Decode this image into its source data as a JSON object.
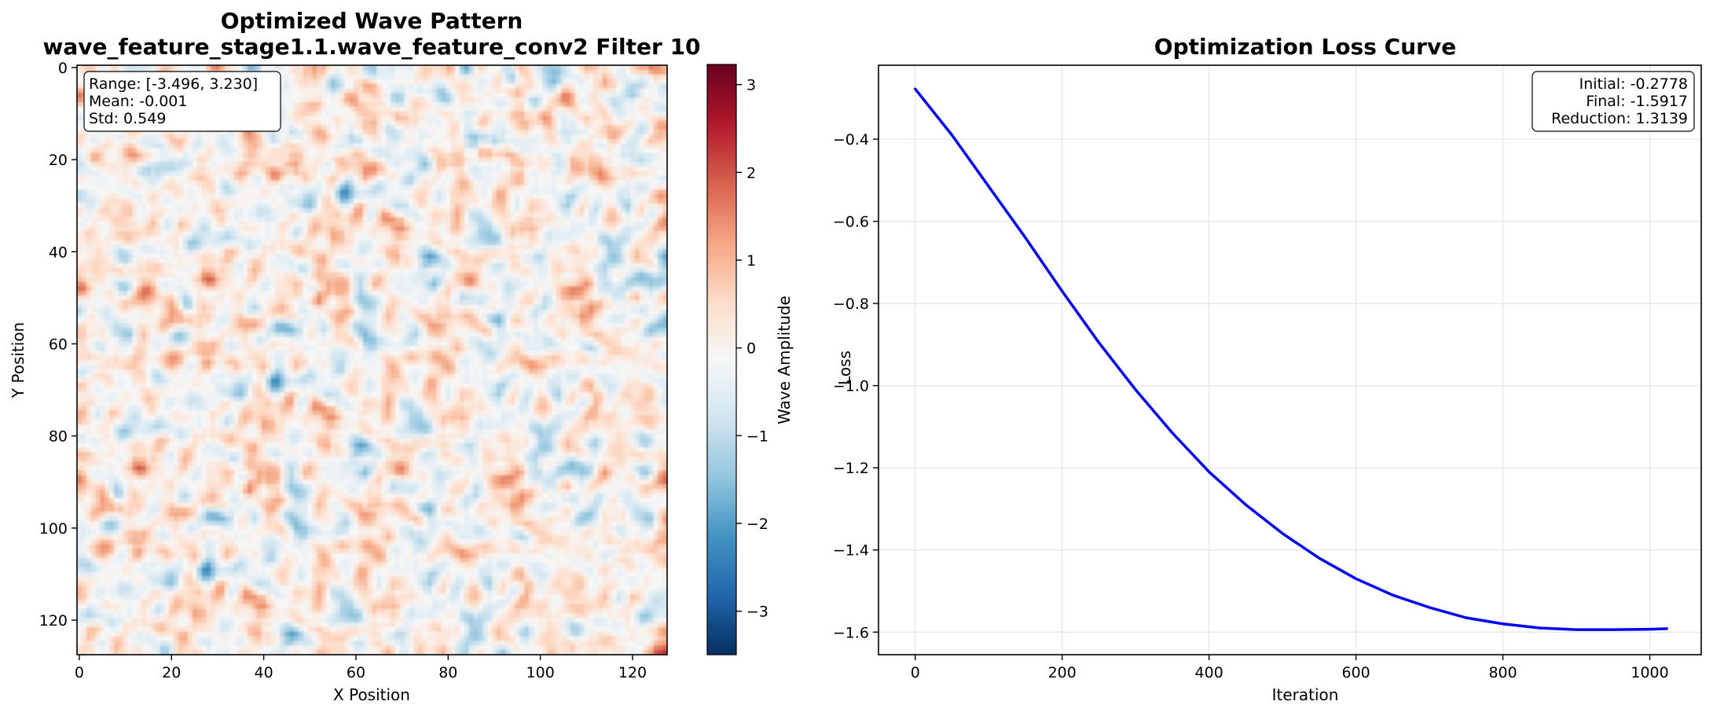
{
  "chart_data": [
    {
      "type": "heatmap",
      "title_line1": "Optimized Wave Pattern",
      "title_line2": "wave_feature_stage1.1.wave_feature_conv2 Filter 10",
      "xlabel": "X Position",
      "ylabel": "Y Position",
      "grid_size": 128,
      "x_ticks": [
        0,
        20,
        40,
        60,
        80,
        100,
        120
      ],
      "y_ticks": [
        0,
        20,
        40,
        60,
        80,
        100,
        120
      ],
      "xlim": [
        0,
        127
      ],
      "ylim": [
        127,
        0
      ],
      "stats": [
        "Range: [-3.496, 3.230]",
        "Mean: -0.001",
        "Std: 0.549"
      ],
      "value_range": [
        -3.496,
        3.23
      ],
      "mean": -0.001,
      "std": 0.549,
      "colormap": "RdBu_r",
      "colorbar": {
        "label": "Wave Amplitude",
        "ticks": [
          3,
          2,
          1,
          0,
          -1,
          -2,
          -3
        ],
        "tick_labels": [
          "3",
          "2",
          "1",
          "0",
          "−1",
          "−2",
          "−3"
        ],
        "range": [
          -3.496,
          3.23
        ]
      }
    },
    {
      "type": "line",
      "title": "Optimization Loss Curve",
      "xlabel": "Iteration",
      "ylabel": "Loss",
      "xlim": [
        -50,
        1070
      ],
      "ylim": [
        -1.655,
        -0.22
      ],
      "x_ticks": [
        0,
        200,
        400,
        600,
        800,
        1000
      ],
      "y_ticks": [
        -0.4,
        -0.6,
        -0.8,
        -1.0,
        -1.2,
        -1.4,
        -1.6
      ],
      "x_tick_labels": [
        "0",
        "200",
        "400",
        "600",
        "800",
        "1000"
      ],
      "y_tick_labels": [
        "−0.4",
        "−0.6",
        "−0.8",
        "−1.0",
        "−1.2",
        "−1.4",
        "−1.6"
      ],
      "grid": true,
      "stats": [
        "Initial: -0.2778",
        "Final: -1.5917",
        "Reduction: 1.3139"
      ],
      "series": [
        {
          "color": "#0000ee",
          "x": [
            0,
            50,
            100,
            150,
            200,
            250,
            300,
            350,
            400,
            450,
            500,
            550,
            600,
            650,
            700,
            750,
            800,
            850,
            900,
            950,
            1000,
            1023
          ],
          "y": [
            -0.2778,
            -0.39,
            -0.515,
            -0.64,
            -0.77,
            -0.895,
            -1.01,
            -1.115,
            -1.21,
            -1.29,
            -1.36,
            -1.42,
            -1.47,
            -1.51,
            -1.54,
            -1.565,
            -1.58,
            -1.59,
            -1.594,
            -1.594,
            -1.593,
            -1.5917
          ]
        }
      ]
    }
  ]
}
